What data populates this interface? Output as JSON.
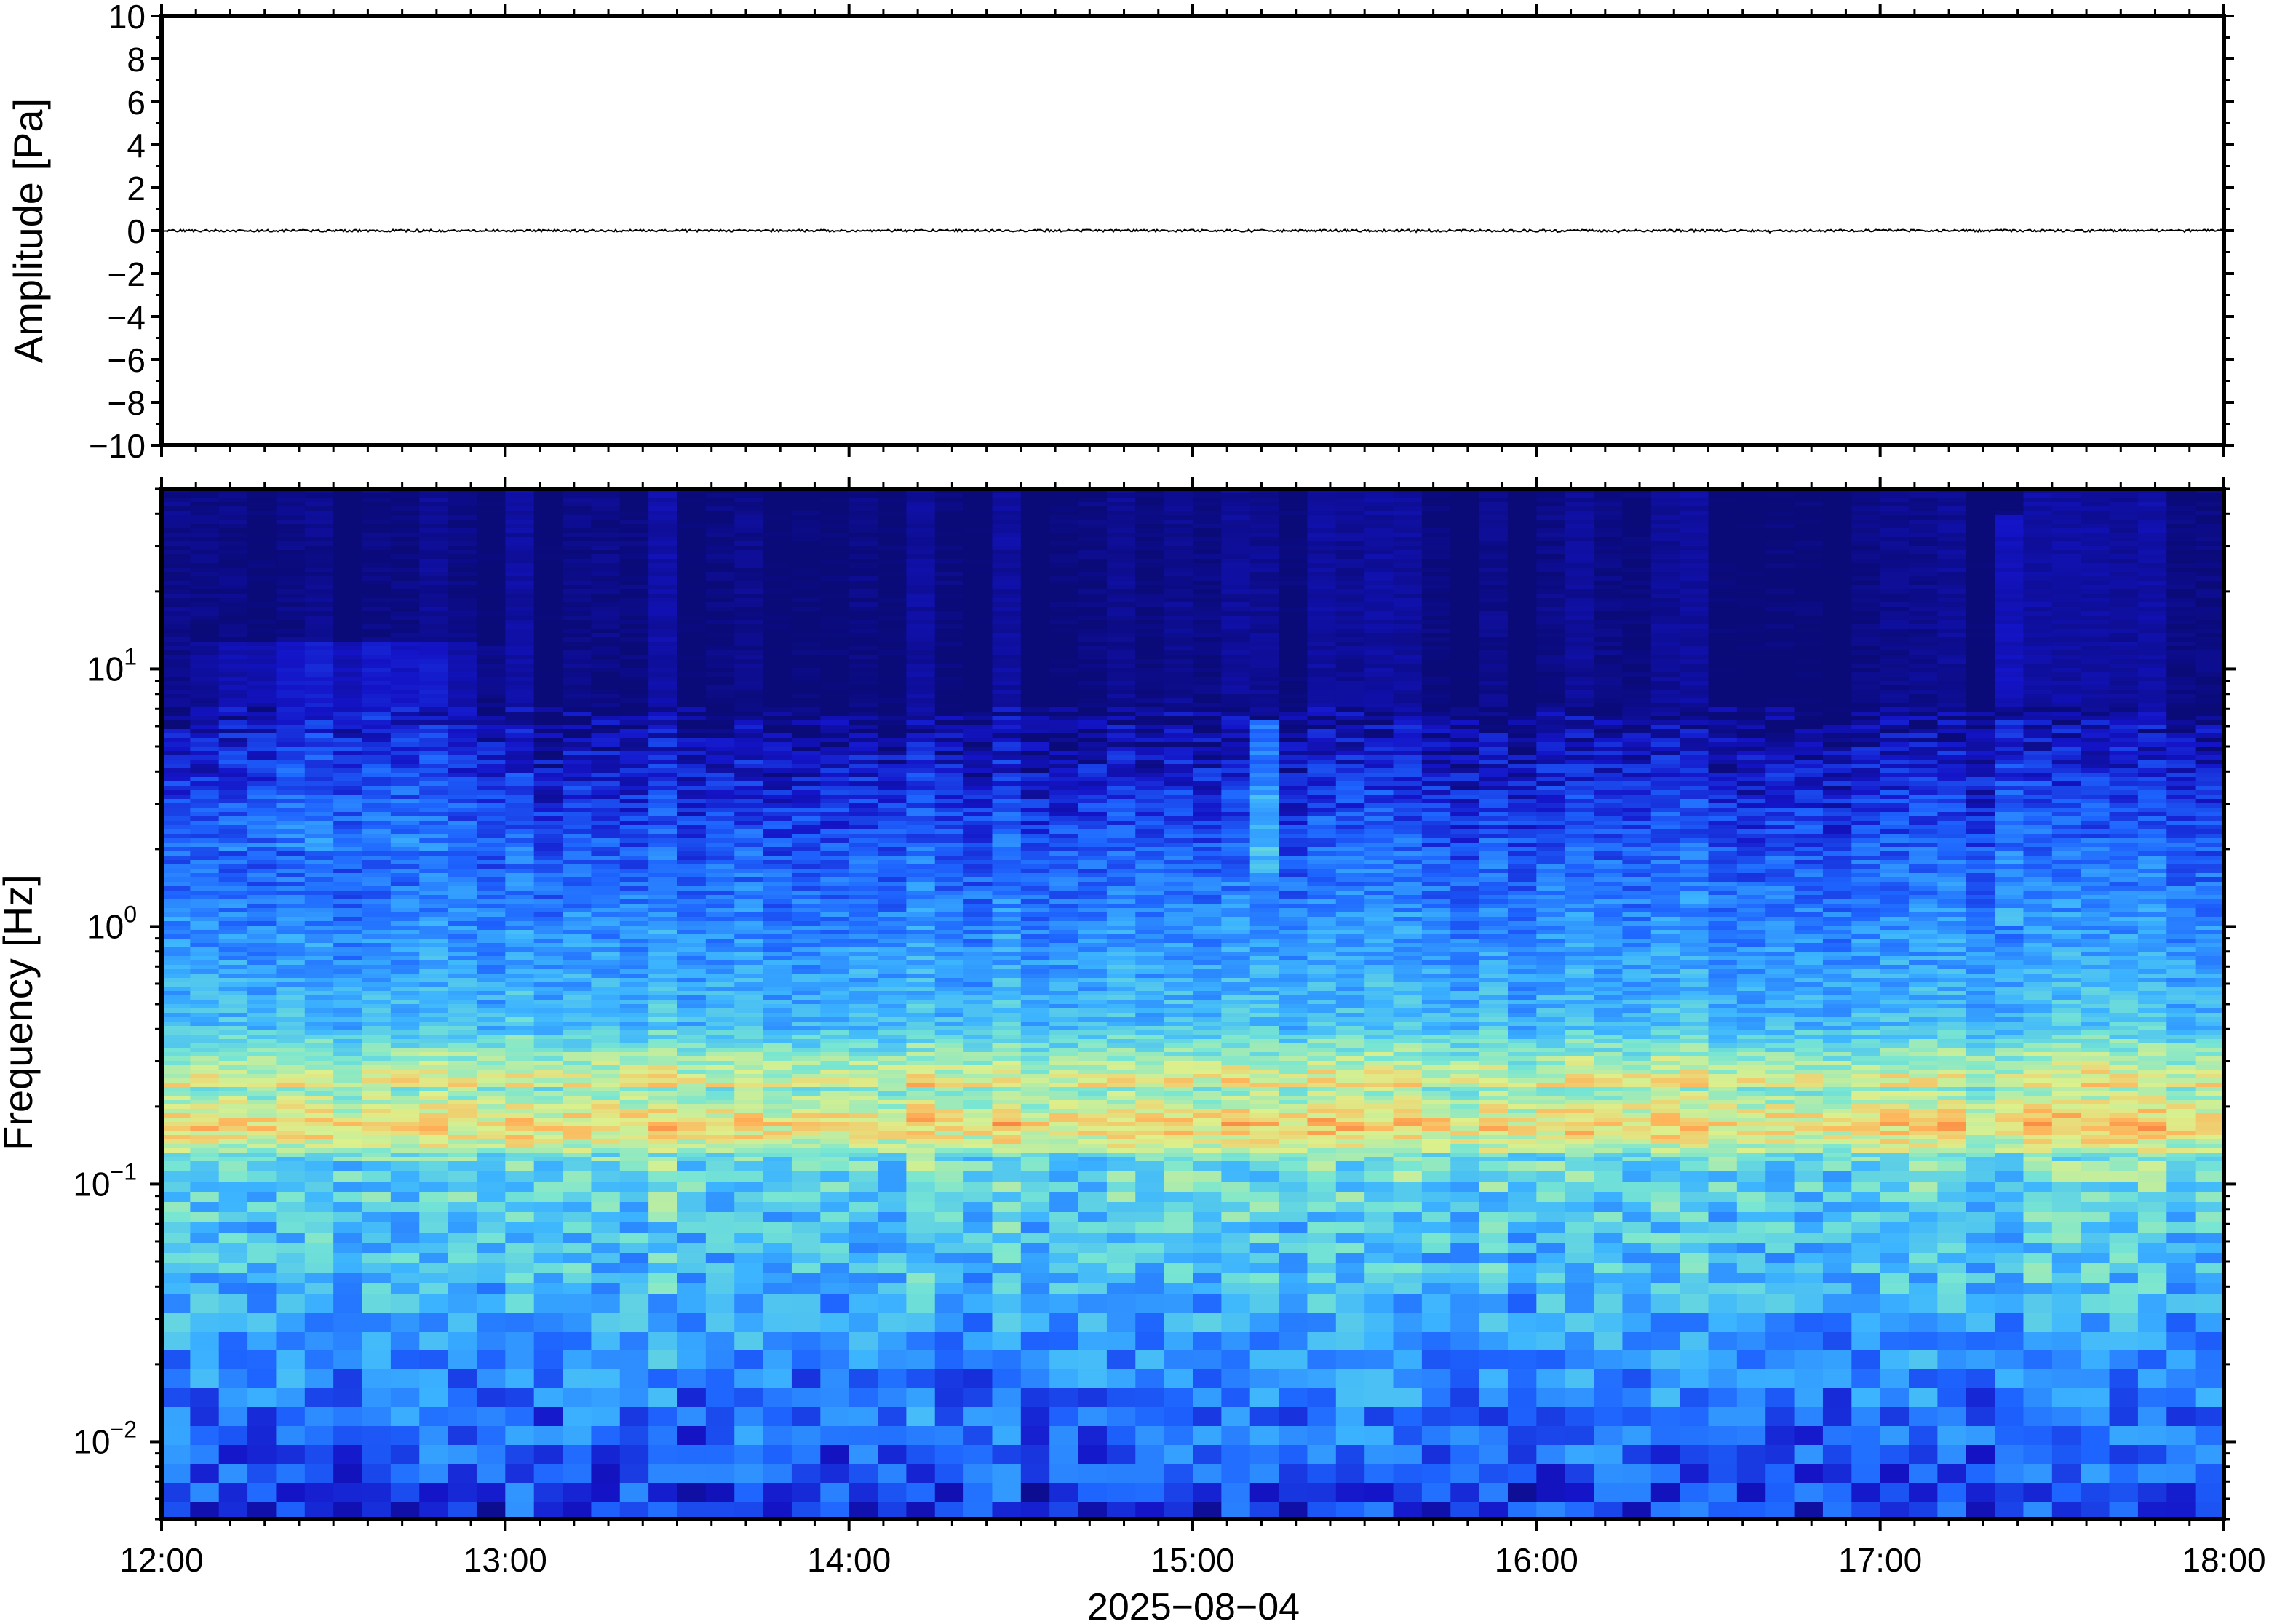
{
  "chart_data": [
    {
      "type": "line",
      "ylabel": "Amplitude [Pa]",
      "ylim": [
        -10,
        10
      ],
      "yticks": [
        10,
        8,
        6,
        4,
        2,
        0,
        -2,
        -4,
        -6,
        -8,
        -10
      ],
      "ytick_labels": [
        "10",
        "8",
        "6",
        "4",
        "2",
        "0",
        "−2",
        "−4",
        "−6",
        "−8",
        "−10"
      ],
      "x": [
        "12:00",
        "18:00"
      ],
      "values": [
        0,
        0
      ],
      "line_color": "#000000",
      "grid": false
    },
    {
      "type": "heatmap",
      "ylabel": "Frequency [Hz]",
      "xlabel": "2025−08−04",
      "yscale": "log",
      "ylim": [
        0.005,
        50
      ],
      "yticks": [
        {
          "base": "10",
          "exp": "1",
          "value": 10
        },
        {
          "base": "10",
          "exp": "0",
          "value": 1
        },
        {
          "base": "10",
          "exp": "−1",
          "value": 0.1
        },
        {
          "base": "10",
          "exp": "−2",
          "value": 0.01
        }
      ],
      "xticks": [
        "12:00",
        "13:00",
        "14:00",
        "15:00",
        "16:00",
        "17:00",
        "18:00"
      ],
      "colormap": "jet",
      "colors": [
        "#0a0a78",
        "#1414b4",
        "#1e64ff",
        "#3cb4ff",
        "#78e6d2",
        "#dcf08c",
        "#ffb45a"
      ],
      "grid": false
    }
  ]
}
